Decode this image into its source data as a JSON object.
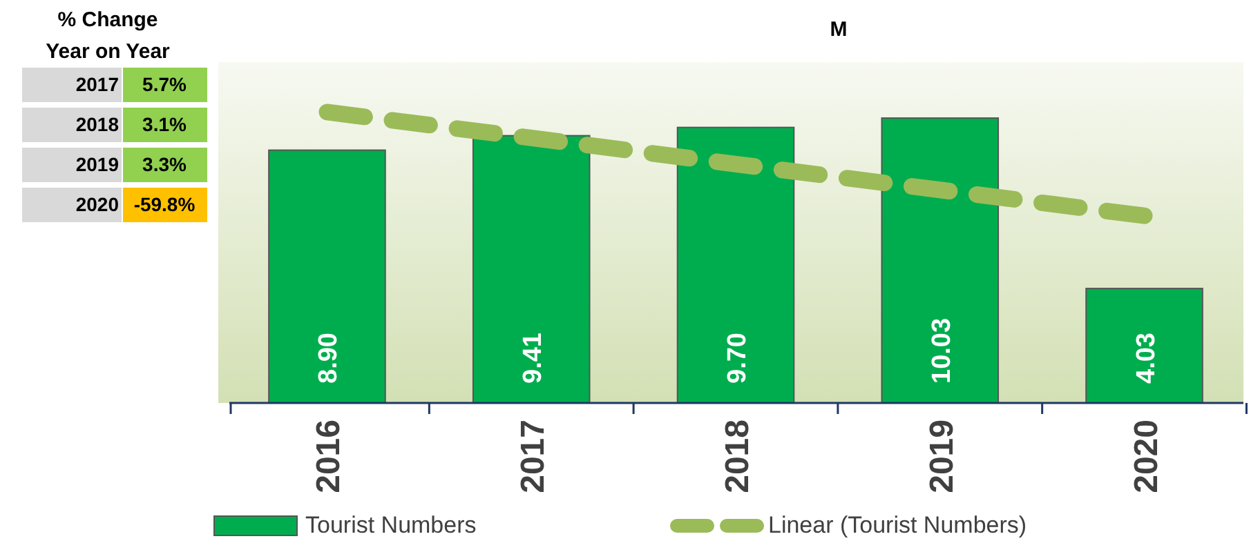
{
  "chart_data": {
    "type": "bar",
    "title": "M",
    "categories": [
      "2016",
      "2017",
      "2018",
      "2019",
      "2020"
    ],
    "series": [
      {
        "name": "Tourist Numbers",
        "color": "#00ad4e",
        "values": [
          8.9,
          9.41,
          9.7,
          10.03,
          4.03
        ],
        "value_labels": [
          "8.90",
          "9.41",
          "9.70",
          "10.03",
          "4.03"
        ]
      },
      {
        "name": "Linear (Tourist Numbers)",
        "type": "line",
        "color": "#9bbb59",
        "line_style": "dashed",
        "values": [
          10.24,
          9.33,
          8.41,
          7.5,
          6.59
        ]
      }
    ],
    "ylim": [
      0,
      12
    ],
    "tick_labels": "x",
    "grid": false,
    "legend": "bottom",
    "annotations": [
      "% Change Year on Year",
      "2017",
      "5.7%",
      "2018",
      "3.1%",
      "2019",
      "3.3%",
      "2020",
      "-59.8%"
    ]
  }
}
